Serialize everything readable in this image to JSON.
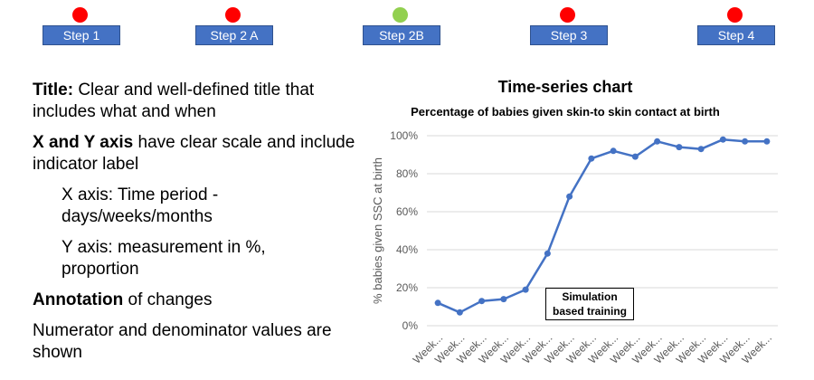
{
  "steps": [
    {
      "label": "Step 1",
      "status_color": "#ff0000"
    },
    {
      "label": "Step 2 A",
      "status_color": "#ff0000"
    },
    {
      "label": "Step 2B",
      "status_color": "#92d050"
    },
    {
      "label": "Step 3",
      "status_color": "#ff0000"
    },
    {
      "label": "Step 4",
      "status_color": "#ff0000"
    }
  ],
  "guidance": {
    "title_label": "Title:",
    "title_text": " Clear and well-defined title that includes what and when",
    "axis_label": "X and Y axis",
    "axis_text": " have clear scale and include indicator label",
    "x_axis_text": "X axis: Time period - days/weeks/months",
    "y_axis_text": "Y axis: measurement in %, proportion",
    "annotation_label": "Annotation",
    "annotation_text": " of changes",
    "numerator_text": "Numerator and denominator values are shown"
  },
  "chart_heading": "Time-series chart",
  "chart_data": {
    "type": "line",
    "title": "Percentage of babies given skin-to skin contact at birth",
    "ylabel": "% babies given SSC at birth",
    "xlabel": "",
    "categories": [
      "Week...",
      "Week...",
      "Week...",
      "Week...",
      "Week...",
      "Week...",
      "Week...",
      "Week...",
      "Week...",
      "Week...",
      "Week...",
      "Week...",
      "Week...",
      "Week...",
      "Week...",
      "Week..."
    ],
    "values": [
      12,
      7,
      13,
      14,
      19,
      38,
      68,
      88,
      92,
      89,
      97,
      94,
      93,
      98,
      97,
      97
    ],
    "ylim": [
      0,
      100
    ],
    "yticks": [
      "0%",
      "20%",
      "40%",
      "60%",
      "80%",
      "100%"
    ],
    "grid": true,
    "line_color": "#4472c4",
    "annotation": "Simulation based training"
  }
}
